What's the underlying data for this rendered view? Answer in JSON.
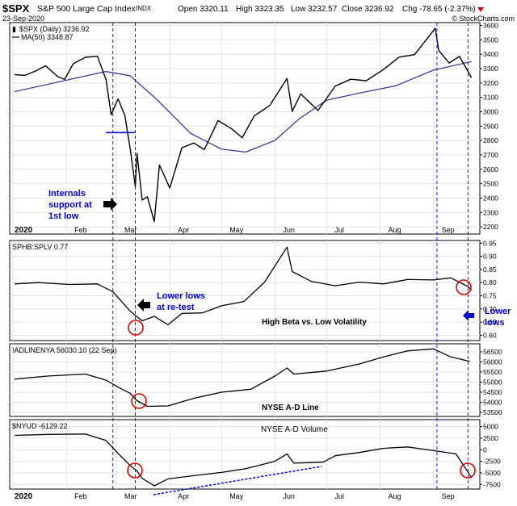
{
  "header": {
    "symbol": "$SPX",
    "name": "S&P 500 Large Cap Index",
    "exchange": "INDX",
    "date": "23-Sep-2020",
    "open": "Open 3320.11",
    "high": "High 3323.35",
    "low": "Low 3232.57",
    "close": "Close 3236.92",
    "chg": "Chg -78.65 (-2.37%)",
    "source": "© StockCharts.com"
  },
  "chart_data": [
    {
      "type": "line",
      "panel": "price",
      "legend": [
        "$SPX (Daily) 3236.92",
        "MA(50) 3348.87"
      ],
      "ylim": [
        2150,
        3620
      ],
      "yticks": [
        2200,
        2300,
        2400,
        2500,
        2600,
        2700,
        2800,
        2900,
        3000,
        3100,
        3200,
        3300,
        3400,
        3500,
        3600
      ],
      "series": [
        {
          "name": "$SPX (Daily)",
          "x": [
            "2020-01-02",
            "2020-01-08",
            "2020-01-14",
            "2020-01-20",
            "2020-01-27",
            "2020-01-31",
            "2020-02-05",
            "2020-02-12",
            "2020-02-19",
            "2020-02-24",
            "2020-02-27",
            "2020-03-02",
            "2020-03-06",
            "2020-03-09",
            "2020-03-12",
            "2020-03-13",
            "2020-03-16",
            "2020-03-19",
            "2020-03-23",
            "2020-03-26",
            "2020-04-01",
            "2020-04-08",
            "2020-04-15",
            "2020-04-21",
            "2020-04-29",
            "2020-05-07",
            "2020-05-13",
            "2020-05-20",
            "2020-05-29",
            "2020-06-08",
            "2020-06-11",
            "2020-06-16",
            "2020-06-26",
            "2020-07-06",
            "2020-07-15",
            "2020-07-24",
            "2020-08-03",
            "2020-08-12",
            "2020-08-21",
            "2020-09-02",
            "2020-09-04",
            "2020-09-10",
            "2020-09-16",
            "2020-09-21",
            "2020-09-23"
          ],
          "y": [
            3258,
            3253,
            3283,
            3320,
            3244,
            3225,
            3334,
            3379,
            3386,
            3225,
            2979,
            3090,
            2972,
            2746,
            2480,
            2711,
            2386,
            2409,
            2237,
            2630,
            2470,
            2750,
            2783,
            2737,
            2939,
            2881,
            2820,
            2971,
            3044,
            3232,
            3002,
            3124,
            3009,
            3179,
            3226,
            3216,
            3294,
            3380,
            3397,
            3580,
            3426,
            3339,
            3385,
            3281,
            3237
          ]
        },
        {
          "name": "MA(50)",
          "x": [
            "2020-01-02",
            "2020-02-03",
            "2020-02-24",
            "2020-03-09",
            "2020-03-25",
            "2020-04-13",
            "2020-05-01",
            "2020-05-15",
            "2020-06-01",
            "2020-06-15",
            "2020-07-01",
            "2020-07-20",
            "2020-08-10",
            "2020-09-01",
            "2020-09-23"
          ],
          "y": [
            3140,
            3225,
            3280,
            3250,
            3080,
            2850,
            2740,
            2720,
            2800,
            2950,
            3080,
            3130,
            3180,
            3290,
            3349
          ]
        }
      ],
      "annotations": [
        "Internals support at 1st low"
      ]
    },
    {
      "type": "line",
      "panel": "sphb_splv",
      "legend": "SPHB:SPLV 0.77",
      "ylim": [
        0.58,
        0.96
      ],
      "yticks": [
        0.6,
        0.65,
        0.7,
        0.75,
        0.8,
        0.85,
        0.9,
        0.95
      ],
      "x": [
        "2020-01-02",
        "2020-01-16",
        "2020-02-03",
        "2020-02-19",
        "2020-02-28",
        "2020-03-09",
        "2020-03-16",
        "2020-03-23",
        "2020-03-31",
        "2020-04-08",
        "2020-04-20",
        "2020-05-01",
        "2020-05-14",
        "2020-05-26",
        "2020-06-08",
        "2020-06-11",
        "2020-06-22",
        "2020-07-06",
        "2020-07-20",
        "2020-08-03",
        "2020-08-17",
        "2020-09-01",
        "2020-09-11",
        "2020-09-21",
        "2020-09-23"
      ],
      "y": [
        0.795,
        0.8,
        0.793,
        0.795,
        0.765,
        0.692,
        0.655,
        0.672,
        0.64,
        0.683,
        0.685,
        0.712,
        0.728,
        0.802,
        0.935,
        0.842,
        0.805,
        0.788,
        0.802,
        0.795,
        0.812,
        0.81,
        0.818,
        0.785,
        0.772
      ],
      "annotations": [
        "Lower lows at re-test",
        "High Beta vs. Low Volatility",
        "Lower lows"
      ]
    },
    {
      "type": "line",
      "panel": "adline",
      "legend": "!ADLINENYA 56030.10 (22 Sep)",
      "ylim": [
        53300,
        56900
      ],
      "yticks": [
        53500,
        54000,
        54500,
        55000,
        55500,
        56000,
        56500
      ],
      "x": [
        "2020-01-02",
        "2020-01-21",
        "2020-02-12",
        "2020-02-24",
        "2020-03-02",
        "2020-03-09",
        "2020-03-13",
        "2020-03-19",
        "2020-03-31",
        "2020-04-15",
        "2020-05-01",
        "2020-05-18",
        "2020-06-01",
        "2020-06-08",
        "2020-06-12",
        "2020-07-01",
        "2020-07-20",
        "2020-08-03",
        "2020-08-17",
        "2020-09-01",
        "2020-09-11",
        "2020-09-22"
      ],
      "y": [
        55150,
        55300,
        55400,
        55100,
        54750,
        54450,
        54080,
        53800,
        53820,
        54200,
        54500,
        54650,
        55300,
        55700,
        55400,
        55550,
        55900,
        56250,
        56550,
        56650,
        56250,
        56030
      ],
      "annotations": [
        "NYSE A-D Line"
      ]
    },
    {
      "type": "line",
      "panel": "nyud",
      "legend": "$NYUD -6129.22",
      "ylim": [
        -8500,
        6500
      ],
      "yticks": [
        -7500,
        -5000,
        -2500,
        0,
        2500,
        5000
      ],
      "x": [
        "2020-01-02",
        "2020-01-21",
        "2020-02-12",
        "2020-02-24",
        "2020-03-02",
        "2020-03-09",
        "2020-03-13",
        "2020-03-16",
        "2020-03-23",
        "2020-03-31",
        "2020-04-15",
        "2020-05-01",
        "2020-05-15",
        "2020-06-01",
        "2020-06-08",
        "2020-06-12",
        "2020-06-29",
        "2020-07-06",
        "2020-07-20",
        "2020-08-03",
        "2020-08-17",
        "2020-09-01",
        "2020-09-14",
        "2020-09-21",
        "2020-09-23"
      ],
      "y": [
        3100,
        3300,
        3400,
        2000,
        -800,
        -3400,
        -4600,
        -6200,
        -7800,
        -6300,
        -5600,
        -4900,
        -4100,
        -2500,
        -900,
        -2900,
        -2700,
        -1300,
        -600,
        300,
        600,
        -200,
        -900,
        -4800,
        -6129
      ],
      "annotations": [
        "NYSE A-D Volume"
      ]
    }
  ],
  "x_axis": {
    "labels": [
      "2020",
      "Feb",
      "Mar",
      "Apr",
      "May",
      "Jun",
      "Jul",
      "Aug",
      "Sep"
    ]
  },
  "colors": {
    "annotation_blue": "#0000cc",
    "circle_red": "#dd0000",
    "ma_line": "#2b2b8f",
    "grid": "#e3e3e3"
  }
}
